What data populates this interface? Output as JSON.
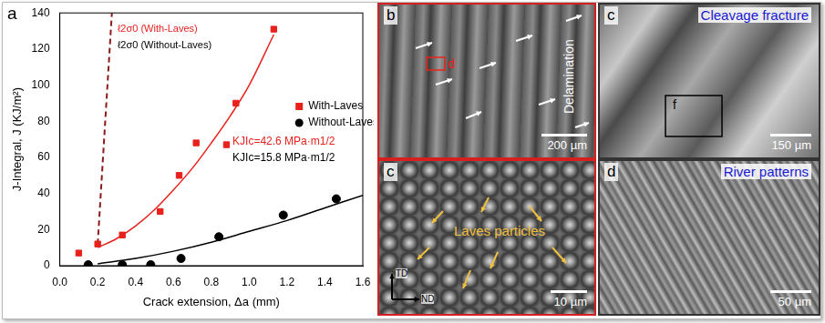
{
  "chart_data": {
    "type": "scatter",
    "label": "a",
    "x_label": "Crack extension, Δa (mm)",
    "y_label": "J-Integral, J (KJ/m²)",
    "xlim": [
      0,
      1.6
    ],
    "xticks": [
      {
        "value": 0,
        "label": "0.0"
      },
      0.2,
      0.4,
      0.6,
      0.8,
      {
        "value": 1,
        "label": "1.0"
      },
      1.2,
      1.4,
      1.6
    ],
    "ylim": [
      0,
      140
    ],
    "yticks": [
      0,
      20,
      40,
      60,
      80,
      100,
      120,
      140
    ],
    "grid": false,
    "legend": "right",
    "series": [
      {
        "name": "With-Laves",
        "color": "#e8211c",
        "marker": "square",
        "x": [
          0.1,
          0.2,
          0.33,
          0.53,
          0.63,
          0.72,
          0.88,
          0.93,
          1.13
        ],
        "values": [
          7,
          12,
          17,
          30,
          50,
          68,
          67,
          90,
          131
        ],
        "fit_x": [
          0.2,
          0.3,
          0.4,
          0.5,
          0.6,
          0.7,
          0.8,
          0.9,
          1.0,
          1.13
        ],
        "fit_values": [
          10,
          15,
          22,
          31,
          42,
          54,
          68,
          83,
          100,
          128
        ]
      },
      {
        "name": "Without-Laves",
        "color": "#000000",
        "marker": "circle",
        "x": [
          0.15,
          0.33,
          0.48,
          0.64,
          0.84,
          1.18,
          1.46
        ],
        "values": [
          0.5,
          0.5,
          0.5,
          4,
          16,
          28,
          37
        ],
        "fit_x": [
          0.2,
          0.4,
          0.6,
          0.8,
          1.0,
          1.2,
          1.4,
          1.6
        ],
        "fit_values": [
          1,
          4,
          8,
          13,
          19,
          25,
          32,
          39
        ]
      }
    ],
    "blunting_line": {
      "x": [
        0.2,
        0.275
      ],
      "values": [
        12,
        140
      ],
      "color": "#8b1a1a",
      "line_style": "dashed"
    },
    "annotations": [
      {
        "text": "ℓ2σ0 (With-Laves)",
        "color": "#e8211c"
      },
      {
        "text": "ℓ2σ0 (Without-Laves)",
        "color": "#000000"
      },
      {
        "text": "KJIc=42.6 MPa·m1/2",
        "color": "#e8211c"
      },
      {
        "text": "KJIc=15.8 MPa·m1/2",
        "color": "#000000"
      }
    ]
  },
  "panels": [
    {
      "label": "b",
      "annotation": "Delamination",
      "inset": "d",
      "scale_bar": "200 µm"
    },
    {
      "label": "c",
      "annotation": "Laves particles",
      "scale_bar": "10 µm",
      "axes": [
        "TD",
        "ND"
      ]
    },
    {
      "label": "c",
      "annotation": "Cleavage fracture",
      "inset": "f",
      "scale_bar": "150 µm"
    },
    {
      "label": "d",
      "annotation": "River patterns",
      "scale_bar": "50 µm"
    }
  ]
}
